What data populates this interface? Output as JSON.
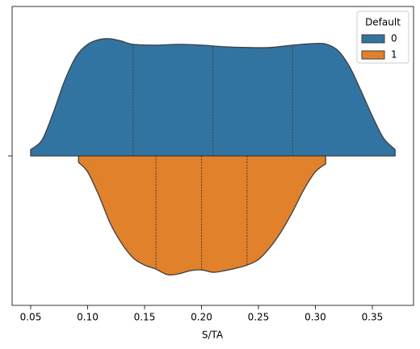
{
  "chart_data": {
    "type": "violin",
    "xlabel": "S/TA",
    "legend_title": "Default",
    "legend_loc": "upper right",
    "xlim": [
      0.0337,
      0.3862
    ],
    "xticks": [
      0.05,
      {
        "value": 0.1,
        "label": "0.10"
      },
      0.15,
      {
        "value": 0.2,
        "label": "0.20"
      },
      0.25,
      {
        "value": 0.3,
        "label": "0.30"
      },
      0.35
    ],
    "series": [
      {
        "name": "0",
        "color": "#3274a1",
        "side": "top",
        "x": [
          0.05,
          0.06,
          0.07,
          0.08,
          0.09,
          0.1,
          0.11,
          0.12,
          0.13,
          0.14,
          0.16,
          0.18,
          0.2,
          0.22,
          0.24,
          0.26,
          0.28,
          0.3,
          0.31,
          0.32,
          0.33,
          0.34,
          0.35,
          0.36,
          0.37
        ],
        "density": [
          8,
          20,
          55,
          95,
          125,
          140,
          146,
          147,
          144,
          140,
          139,
          140,
          139,
          137,
          136,
          136,
          139,
          141,
          140,
          132,
          112,
          82,
          50,
          22,
          8
        ],
        "quartiles": [
          0.14,
          0.21,
          0.28
        ]
      },
      {
        "name": "1",
        "color": "#e1812c",
        "side": "bottom",
        "x": [
          0.092,
          0.1,
          0.11,
          0.12,
          0.13,
          0.14,
          0.15,
          0.16,
          0.17,
          0.18,
          0.19,
          0.2,
          0.21,
          0.22,
          0.23,
          0.24,
          0.25,
          0.26,
          0.27,
          0.28,
          0.29,
          0.3,
          0.309
        ],
        "density": [
          8,
          20,
          50,
          85,
          110,
          128,
          137,
          142,
          149,
          148,
          144,
          143,
          146,
          144,
          141,
          137,
          130,
          115,
          95,
          70,
          42,
          20,
          10
        ],
        "quartiles": [
          0.16,
          0.2,
          0.24
        ]
      }
    ]
  }
}
